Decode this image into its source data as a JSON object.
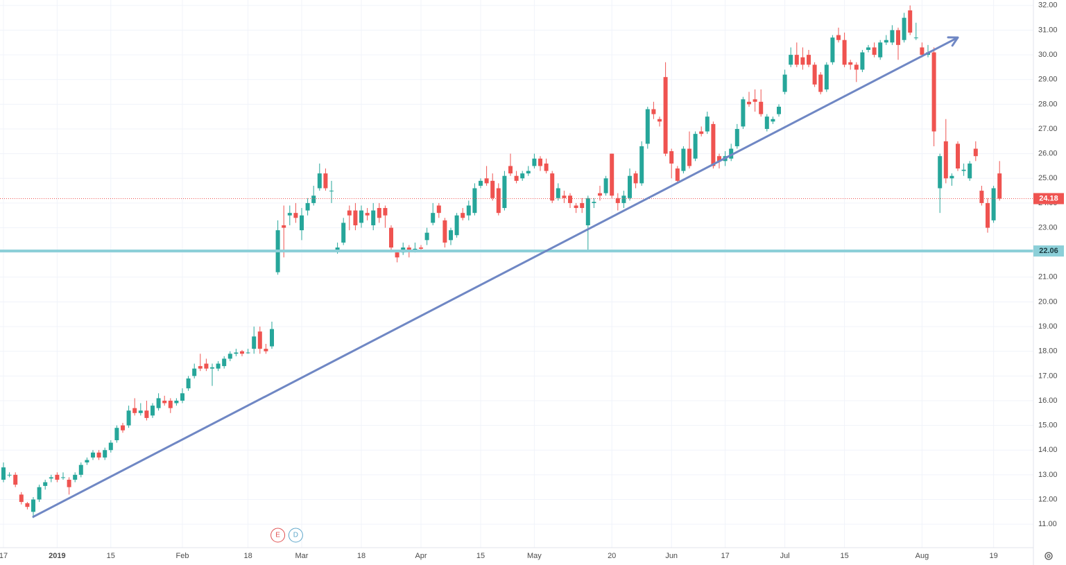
{
  "chart_data": {
    "type": "candlestick",
    "categories": [
      "17",
      null,
      null,
      null,
      null,
      null,
      null,
      null,
      null,
      "2019",
      null,
      null,
      null,
      null,
      null,
      null,
      null,
      null,
      "15",
      null,
      null,
      null,
      null,
      null,
      null,
      null,
      null,
      null,
      null,
      null,
      "Feb",
      null,
      null,
      null,
      null,
      null,
      null,
      null,
      null,
      null,
      null,
      "18",
      null,
      null,
      null,
      null,
      null,
      null,
      null,
      null,
      "Mar",
      null,
      null,
      null,
      null,
      null,
      null,
      null,
      null,
      null,
      "18",
      null,
      null,
      null,
      null,
      null,
      null,
      null,
      null,
      null,
      "Apr",
      null,
      null,
      null,
      null,
      null,
      null,
      null,
      null,
      null,
      "15",
      null,
      null,
      null,
      null,
      null,
      null,
      null,
      null,
      "May",
      null,
      null,
      null,
      null,
      null,
      null,
      null,
      null,
      null,
      null,
      null,
      null,
      "20",
      null,
      null,
      null,
      null,
      null,
      null,
      null,
      null,
      null,
      "Jun",
      null,
      null,
      null,
      null,
      null,
      null,
      null,
      null,
      "17",
      null,
      null,
      null,
      null,
      null,
      null,
      null,
      null,
      null,
      "Jul",
      null,
      null,
      null,
      null,
      null,
      null,
      null,
      null,
      null,
      "15",
      null,
      null,
      null,
      null,
      null,
      null,
      null,
      null,
      null,
      null,
      null,
      null,
      "Aug",
      null,
      null,
      null,
      null,
      null,
      null,
      null,
      null,
      null,
      null,
      null,
      "19",
      null
    ],
    "open": [
      12.8,
      13.0,
      13.0,
      12.2,
      11.85,
      11.5,
      12.0,
      12.55,
      12.85,
      13.0,
      12.9,
      12.8,
      12.8,
      13.0,
      13.5,
      13.7,
      13.9,
      13.7,
      14.0,
      14.4,
      15.0,
      15.0,
      15.7,
      15.5,
      15.6,
      15.4,
      15.7,
      16.0,
      16.0,
      15.9,
      16.0,
      16.5,
      17.0,
      17.4,
      17.5,
      17.3,
      17.3,
      17.4,
      17.7,
      17.9,
      18.0,
      17.95,
      18.1,
      18.8,
      18.1,
      18.2,
      21.2,
      23.1,
      23.5,
      23.6,
      22.9,
      23.7,
      24.0,
      24.6,
      25.2,
      24.5,
      22.1,
      22.4,
      23.7,
      23.7,
      23.2,
      23.6,
      23.1,
      23.8,
      23.8,
      23.0,
      22.0,
      22.0,
      22.2,
      22.1,
      22.2,
      22.5,
      23.2,
      23.9,
      23.3,
      22.5,
      22.7,
      23.6,
      23.5,
      23.6,
      24.7,
      25.0,
      24.9,
      24.6,
      23.8,
      25.5,
      25.1,
      25.0,
      25.2,
      25.5,
      25.8,
      25.6,
      25.2,
      24.2,
      24.3,
      24.3,
      23.9,
      24.0,
      23.1,
      24.0,
      24.4,
      24.4,
      26.0,
      24.2,
      24.0,
      24.2,
      25.2,
      24.8,
      26.4,
      27.8,
      27.4,
      29.1,
      26.1,
      25.4,
      25.3,
      26.2,
      25.8,
      26.9,
      26.9,
      27.2,
      25.9,
      25.7,
      25.8,
      26.3,
      27.1,
      28.1,
      28.2,
      28.1,
      27.0,
      27.3,
      27.6,
      28.5,
      29.6,
      30.0,
      29.9,
      30.0,
      29.6,
      29.2,
      28.6,
      29.7,
      30.8,
      30.6,
      29.7,
      29.6,
      29.4,
      30.2,
      30.3,
      29.9,
      30.5,
      30.5,
      31.0,
      30.6,
      31.8,
      30.7,
      30.3,
      30.0,
      30.1,
      24.6,
      26.5,
      25.0,
      26.4,
      25.3,
      25.0,
      26.2,
      24.5,
      24.0,
      23.3,
      25.2
    ],
    "high": [
      13.5,
      13.1,
      13.1,
      12.3,
      11.9,
      12.1,
      12.6,
      12.8,
      13.0,
      13.1,
      13.1,
      12.9,
      13.1,
      13.5,
      13.7,
      14.0,
      14.0,
      14.1,
      14.4,
      15.0,
      15.1,
      15.8,
      16.1,
      15.9,
      16.0,
      15.9,
      16.3,
      16.2,
      16.1,
      16.1,
      16.5,
      17.0,
      17.5,
      17.9,
      17.7,
      17.5,
      17.6,
      17.8,
      18.0,
      18.1,
      18.05,
      18.1,
      19.0,
      19.0,
      18.3,
      19.2,
      23.3,
      23.9,
      23.9,
      24.0,
      23.8,
      24.2,
      24.7,
      25.6,
      25.4,
      24.9,
      22.4,
      23.4,
      23.9,
      24.0,
      23.9,
      23.8,
      24.0,
      24.0,
      23.9,
      23.1,
      22.1,
      22.4,
      22.3,
      22.4,
      22.3,
      23.0,
      24.0,
      24.0,
      23.4,
      23.0,
      23.6,
      23.8,
      24.1,
      24.8,
      25.0,
      25.5,
      25.2,
      24.8,
      25.3,
      26.0,
      25.3,
      25.3,
      25.5,
      26.0,
      25.9,
      25.8,
      25.3,
      24.8,
      24.5,
      24.4,
      24.0,
      24.2,
      24.3,
      24.2,
      24.7,
      25.1,
      26.0,
      24.4,
      24.5,
      25.4,
      25.3,
      26.5,
      27.9,
      28.1,
      27.5,
      29.7,
      26.2,
      25.5,
      26.3,
      26.9,
      26.9,
      27.1,
      27.7,
      27.3,
      26.0,
      26.1,
      26.4,
      27.2,
      28.3,
      28.5,
      28.6,
      28.6,
      27.6,
      27.5,
      28.0,
      29.4,
      30.3,
      30.5,
      30.3,
      30.2,
      29.7,
      29.3,
      29.7,
      30.8,
      31.1,
      30.9,
      29.8,
      29.7,
      30.2,
      30.4,
      30.5,
      30.6,
      30.8,
      31.2,
      31.1,
      31.7,
      32.0,
      31.3,
      30.5,
      30.4,
      30.3,
      26.0,
      27.4,
      25.2,
      26.5,
      25.6,
      25.7,
      26.5,
      24.7,
      24.2,
      24.7,
      25.7
    ],
    "low": [
      12.7,
      12.9,
      12.5,
      11.8,
      11.6,
      11.25,
      11.9,
      12.4,
      12.7,
      12.7,
      12.8,
      12.2,
      12.7,
      12.9,
      13.4,
      13.6,
      13.6,
      13.6,
      13.9,
      14.3,
      14.7,
      14.9,
      15.4,
      15.4,
      15.2,
      15.3,
      15.6,
      15.8,
      15.5,
      15.8,
      15.9,
      16.4,
      16.9,
      17.2,
      17.2,
      16.6,
      17.2,
      17.3,
      17.6,
      17.8,
      17.8,
      17.9,
      17.9,
      17.9,
      17.9,
      18.1,
      21.1,
      21.8,
      23.1,
      23.2,
      22.5,
      23.5,
      23.9,
      24.5,
      24.5,
      24.0,
      21.95,
      22.3,
      22.9,
      22.9,
      23.0,
      23.3,
      22.9,
      23.2,
      23.0,
      22.0,
      21.6,
      21.9,
      21.8,
      22.0,
      22.1,
      22.3,
      23.1,
      23.4,
      22.2,
      22.3,
      22.6,
      23.3,
      23.3,
      23.5,
      24.6,
      24.7,
      24.1,
      23.5,
      23.7,
      25.1,
      24.8,
      24.9,
      25.1,
      25.4,
      25.3,
      25.2,
      24.0,
      24.1,
      24.0,
      23.8,
      23.6,
      23.6,
      22.1,
      23.8,
      24.1,
      24.3,
      24.2,
      23.7,
      23.8,
      24.1,
      24.6,
      24.7,
      26.2,
      27.4,
      27.1,
      25.9,
      25.0,
      24.8,
      25.2,
      25.4,
      25.7,
      26.7,
      26.8,
      25.4,
      25.4,
      25.5,
      25.7,
      26.2,
      27.0,
      27.9,
      27.7,
      27.5,
      26.9,
      27.2,
      27.5,
      28.4,
      29.5,
      29.5,
      29.4,
      29.5,
      28.7,
      28.4,
      28.5,
      29.6,
      30.5,
      29.5,
      29.4,
      28.9,
      29.3,
      30.1,
      29.9,
      29.8,
      30.4,
      30.4,
      29.8,
      30.5,
      30.8,
      30.6,
      29.9,
      29.9,
      26.3,
      23.6,
      24.8,
      24.7,
      25.3,
      25.1,
      24.9,
      25.7,
      23.9,
      22.8,
      23.2,
      24.1
    ],
    "close": [
      13.3,
      13.0,
      12.6,
      11.9,
      11.7,
      12.0,
      12.5,
      12.7,
      12.9,
      12.8,
      12.9,
      12.5,
      13.0,
      13.4,
      13.6,
      13.9,
      13.7,
      14.0,
      14.3,
      14.9,
      14.8,
      15.6,
      15.5,
      15.6,
      15.3,
      15.8,
      16.1,
      15.9,
      15.7,
      16.0,
      16.3,
      16.9,
      17.3,
      17.3,
      17.3,
      17.35,
      17.5,
      17.7,
      17.9,
      17.95,
      17.9,
      17.95,
      18.6,
      18.1,
      18.0,
      18.9,
      22.9,
      23.0,
      23.6,
      23.4,
      23.5,
      24.0,
      24.3,
      25.2,
      24.6,
      24.5,
      22.2,
      23.2,
      23.5,
      23.1,
      23.7,
      23.5,
      23.7,
      23.4,
      23.5,
      22.2,
      21.8,
      22.2,
      22.1,
      22.15,
      22.15,
      22.8,
      23.6,
      23.6,
      22.4,
      22.9,
      23.5,
      23.4,
      23.9,
      24.6,
      24.9,
      24.8,
      24.2,
      23.6,
      25.1,
      25.2,
      24.9,
      25.2,
      25.3,
      25.8,
      25.5,
      25.3,
      24.1,
      24.6,
      24.2,
      24.0,
      23.8,
      23.8,
      24.2,
      24.05,
      24.3,
      25.0,
      24.3,
      24.0,
      24.3,
      25.1,
      24.8,
      26.3,
      27.8,
      27.6,
      27.3,
      26.0,
      25.6,
      24.9,
      26.2,
      25.5,
      26.8,
      26.8,
      27.5,
      25.5,
      25.7,
      25.9,
      26.2,
      27.0,
      28.2,
      28.0,
      28.1,
      27.6,
      27.5,
      27.4,
      27.9,
      29.2,
      30.0,
      29.6,
      29.6,
      29.6,
      28.8,
      28.5,
      29.6,
      30.7,
      30.6,
      29.6,
      29.6,
      29.4,
      30.1,
      30.3,
      30.0,
      30.5,
      30.6,
      31.0,
      30.4,
      31.5,
      30.9,
      30.7,
      30.0,
      30.1,
      26.9,
      25.9,
      25.0,
      25.1,
      25.4,
      25.35,
      25.6,
      25.9,
      24.0,
      23.0,
      24.6,
      24.18
    ],
    "up_color": "#26a69a",
    "down_color": "#ef5350",
    "ylim": [
      10.05,
      32.22
    ],
    "yticks": [
      {
        "value": 11,
        "label": "11.00"
      },
      {
        "value": 12,
        "label": "12.00"
      },
      {
        "value": 13,
        "label": "13.00"
      },
      {
        "value": 14,
        "label": "14.00"
      },
      {
        "value": 15,
        "label": "15.00"
      },
      {
        "value": 16,
        "label": "16.00"
      },
      {
        "value": 17,
        "label": "17.00"
      },
      {
        "value": 18,
        "label": "18.00"
      },
      {
        "value": 19,
        "label": "19.00"
      },
      {
        "value": 20,
        "label": "20.00"
      },
      {
        "value": 21,
        "label": "21.00"
      },
      {
        "value": 22,
        "label": "22.00"
      },
      {
        "value": 23,
        "label": "23.00"
      },
      {
        "value": 24,
        "label": "24.00"
      },
      {
        "value": 25,
        "label": "25.00"
      },
      {
        "value": 26,
        "label": "26.00"
      },
      {
        "value": 27,
        "label": "27.00"
      },
      {
        "value": 28,
        "label": "28.00"
      },
      {
        "value": 29,
        "label": "29.00"
      },
      {
        "value": 30,
        "label": "30.00"
      },
      {
        "value": 31,
        "label": "31.00"
      },
      {
        "value": 32,
        "label": "32.00"
      }
    ],
    "grid": true,
    "levels": [
      {
        "value": 24.18,
        "color": "#ef5350",
        "style": "dotted"
      },
      {
        "value": 22.06,
        "color": "#8ccfd8",
        "style": "solid"
      }
    ],
    "trendline": {
      "x": [
        5,
        160
      ],
      "y": [
        11.3,
        30.7
      ],
      "color": "#6f87c4"
    },
    "events": [
      {
        "index": 46,
        "label": "E",
        "color": "#e05050"
      },
      {
        "index": 49,
        "label": "D",
        "color": "#5ba5c9"
      }
    ]
  }
}
